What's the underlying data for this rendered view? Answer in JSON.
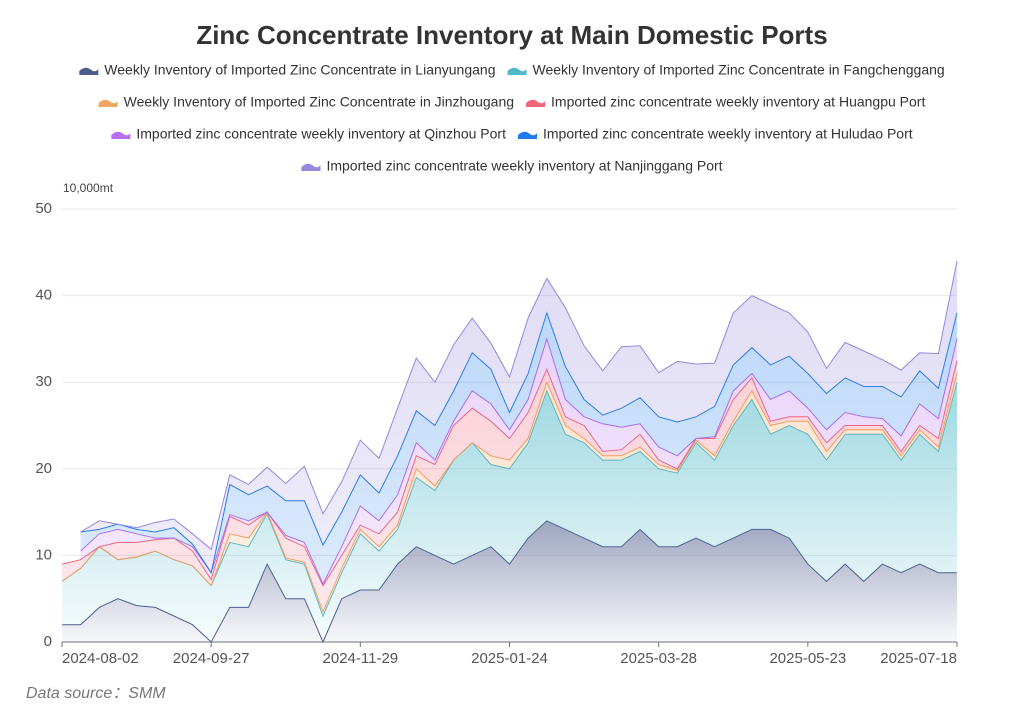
{
  "chart_data": {
    "type": "stacked_area",
    "title": "Zinc Concentrate Inventory at Main Domestic Ports",
    "y_unit": "10,000mt",
    "source": "Data source：SMM",
    "categories": [
      "2024-08-02",
      null,
      null,
      null,
      null,
      null,
      null,
      null,
      "2024-09-27",
      null,
      null,
      null,
      null,
      null,
      null,
      null,
      "2024-11-29",
      null,
      null,
      null,
      null,
      null,
      null,
      null,
      "2025-01-24",
      null,
      null,
      null,
      null,
      null,
      null,
      null,
      "2025-03-28",
      null,
      null,
      null,
      null,
      null,
      null,
      null,
      "2025-05-23",
      null,
      null,
      null,
      null,
      null,
      null,
      null,
      "2025-07-18"
    ],
    "ylim": [
      0,
      50
    ],
    "yticks": [
      0,
      10,
      20,
      30,
      40,
      50
    ],
    "grid": true,
    "series": [
      {
        "name": "Weekly Inventory of Imported Zinc Concentrate in Lianyungang",
        "color": "#4d5a8c",
        "values": [
          2,
          2,
          4,
          5,
          4.2,
          4,
          3,
          2,
          0,
          4,
          4,
          9,
          5,
          5,
          0,
          5,
          6,
          6,
          9,
          11,
          10,
          9,
          10,
          11,
          9,
          12,
          14,
          13,
          12,
          11,
          11,
          13,
          11,
          11,
          12,
          11,
          12,
          13,
          13,
          12,
          9,
          7,
          9,
          7,
          9,
          8,
          9,
          8,
          8
        ]
      },
      {
        "name": "Weekly Inventory of Imported Zinc Concentrate in Fangchenggang",
        "color": "#4fb8c9",
        "values": [
          5,
          6.5,
          7,
          4.5,
          5.6,
          6.5,
          6.5,
          6.8,
          6.5,
          7.5,
          7,
          5.8,
          4.5,
          4,
          3,
          3,
          6.5,
          4.5,
          4,
          8,
          7.5,
          12,
          13,
          9.5,
          11,
          11,
          15,
          11,
          11,
          10,
          10,
          9,
          9,
          8.5,
          11,
          10,
          13,
          15,
          11,
          13,
          15,
          14,
          15,
          17,
          15,
          13,
          15,
          14,
          22
        ]
      },
      {
        "name": "Weekly Inventory of Imported Zinc Concentrate in Jinzhougang",
        "color": "#f2a35e",
        "values": [
          0,
          0,
          0,
          0,
          0,
          0,
          0,
          0,
          0,
          1,
          1,
          0.2,
          0.2,
          0.2,
          0.5,
          0.5,
          0.5,
          0.5,
          0.5,
          1,
          0.5,
          0,
          0,
          1,
          1,
          0.5,
          1,
          1,
          0.5,
          0.5,
          0.5,
          0.5,
          0.5,
          0.3,
          0.3,
          0.5,
          0.5,
          1,
          1,
          0.5,
          1.5,
          1,
          0.5,
          0.5,
          0.5,
          0.5,
          0.5,
          0.5,
          1
        ]
      },
      {
        "name": "Imported zinc concentrate weekly inventory at Huangpu Port",
        "color": "#f0657a",
        "values": [
          2,
          1,
          0,
          2,
          1.7,
          1.3,
          2.5,
          1.7,
          0.7,
          2,
          1.5,
          0,
          2.3,
          1.8,
          3,
          1.5,
          0.5,
          1.5,
          1.5,
          1.5,
          2.5,
          4,
          4,
          4,
          2.5,
          3,
          1.5,
          1,
          1.5,
          0.5,
          0.7,
          1.5,
          0.5,
          0.2,
          0.2,
          2,
          2.5,
          1.5,
          0.5,
          0.5,
          0.5,
          1,
          0.5,
          0.5,
          0.5,
          0.5,
          0.5,
          1,
          1.5
        ]
      },
      {
        "name": "Imported zinc concentrate weekly inventory at Qinzhou Port",
        "color": "#b76ef0",
        "values": [
          null,
          1,
          1.5,
          1.5,
          1,
          0.2,
          0,
          0.5,
          0.8,
          0.2,
          0.5,
          0,
          0.3,
          0.5,
          0.2,
          1,
          2.2,
          1.5,
          2,
          1.5,
          0.5,
          0.5,
          2,
          2,
          1,
          1.5,
          3.5,
          2,
          1,
          3.2,
          2.6,
          1.2,
          1.5,
          1.5,
          0,
          0.2,
          1,
          0.5,
          2.5,
          3,
          1,
          1.5,
          1.5,
          1,
          0.8,
          1.8,
          2.5,
          2.3,
          2.5
        ]
      },
      {
        "name": "Imported zinc concentrate weekly inventory at Huludao Port",
        "color": "#1f7bef",
        "values": [
          null,
          2.2,
          0.5,
          0.6,
          0.5,
          0.7,
          1.2,
          0.3,
          0,
          3.5,
          3,
          3,
          4,
          4.8,
          4.5,
          4,
          3.6,
          3.2,
          4.5,
          3.7,
          4,
          3.5,
          4.4,
          4,
          2,
          3,
          3,
          3.8,
          2,
          1,
          2.2,
          3,
          3.5,
          3.9,
          2.5,
          3.5,
          3,
          3,
          4,
          4,
          4,
          4.2,
          4,
          3.5,
          3.7,
          4.5,
          3.8,
          3.5,
          3
        ]
      },
      {
        "name": "Imported zinc concentrate weekly inventory at Nanjinggang Port",
        "color": "#9588de",
        "values": [
          null,
          0,
          1,
          0,
          0.2,
          1.1,
          1,
          1.2,
          2.7,
          1.1,
          1.2,
          2.2,
          2,
          4,
          3.6,
          3.5,
          4,
          4,
          5.5,
          6.1,
          5,
          5.3,
          4,
          3,
          4.1,
          6.4,
          4,
          6.8,
          6.2,
          5.1,
          7.1,
          6,
          5.1,
          7,
          6.1,
          5,
          6,
          6,
          7,
          5,
          4.8,
          2.9,
          4.1,
          4.1,
          3.1,
          3.1,
          2.1,
          4,
          6
        ]
      }
    ]
  }
}
